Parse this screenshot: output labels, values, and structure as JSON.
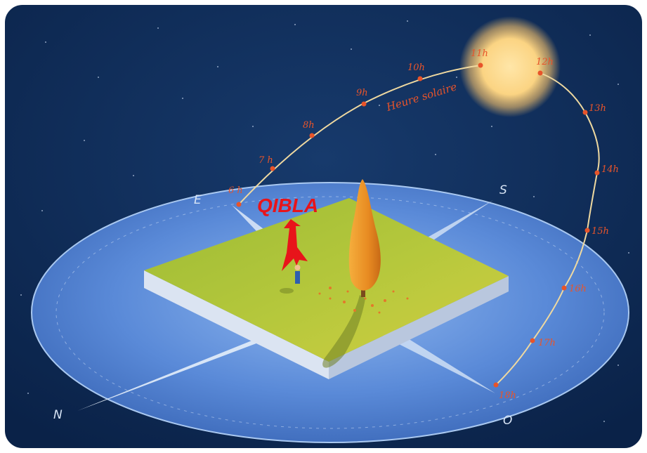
{
  "colors": {
    "sky": "#0d2a55",
    "disc": "#4f7fd0",
    "ground": "#a8c238",
    "hour_text": "#e8542a",
    "qibla": "#e8141a",
    "compass_text": "#d7e4f5",
    "sun": "#fbd98a"
  },
  "caption": "Heure solaire",
  "qibla_label": "QIBLA",
  "directions": {
    "east": "E",
    "south": "S",
    "north": "N",
    "west": "O"
  },
  "hours": [
    "6 h",
    "7 h",
    "8h",
    "9h",
    "10h",
    "11h",
    "12h",
    "13h",
    "14h",
    "15h",
    "16h",
    "17h",
    "18h"
  ]
}
